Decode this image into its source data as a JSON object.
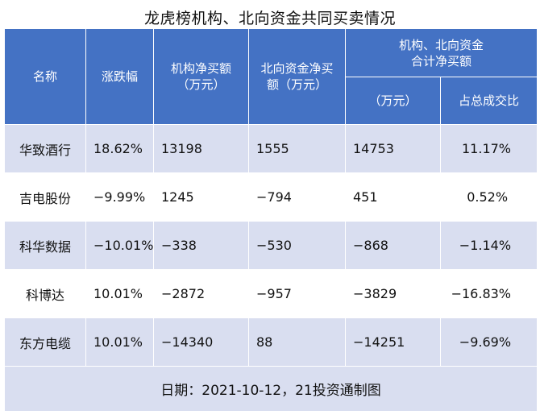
{
  "title": "龙虎榜机构、北向资金共同买卖情况",
  "headers": {
    "name": "名称",
    "change": "涨跌幅",
    "inst_line1": "机构净买额",
    "inst_line2": "（万元）",
    "north_line1": "北向资金净买",
    "north_line2": "额（万元）",
    "combined_line1": "机构、北向资金",
    "combined_line2": "合计净买额",
    "combined_unit": "（万元）",
    "ratio": "占总成交比"
  },
  "rows": [
    {
      "name": "华致酒行",
      "change": "18.62%",
      "inst": "13198",
      "north": "1555",
      "total": "14753",
      "ratio": "11.17%"
    },
    {
      "name": "吉电股份",
      "change": "−9.99%",
      "inst": "1245",
      "north": "−794",
      "total": "451",
      "ratio": "0.52%"
    },
    {
      "name": "科华数据",
      "change": "−10.01%",
      "inst": "−338",
      "north": "−530",
      "total": "−868",
      "ratio": "−1.14%"
    },
    {
      "name": "科博达",
      "change": "10.01%",
      "inst": "−2872",
      "north": "−957",
      "total": "−3829",
      "ratio": "−16.83%"
    },
    {
      "name": "东方电缆",
      "change": "10.01%",
      "inst": "−14340",
      "north": "88",
      "total": "−14251",
      "ratio": "−9.69%"
    }
  ],
  "footer": "日期：2021-10-12，21投资通制图"
}
